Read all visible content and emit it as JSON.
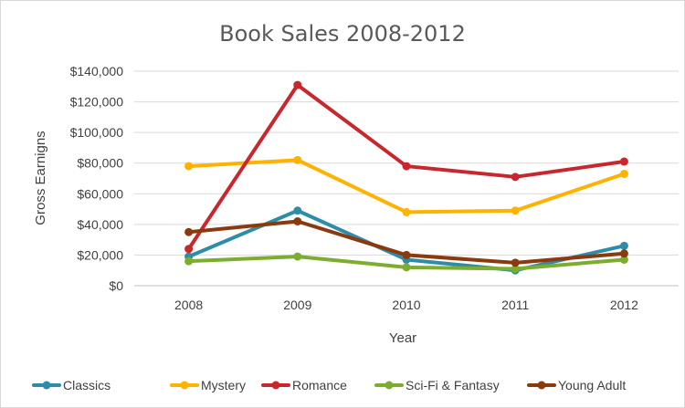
{
  "chart_data": {
    "type": "line",
    "title": "Book Sales 2008-2012",
    "xlabel": "Year",
    "ylabel": "Gross Earnigns",
    "categories": [
      "2008",
      "2009",
      "2010",
      "2011",
      "2012"
    ],
    "ylim": [
      0,
      140000
    ],
    "yticks": [
      0,
      20000,
      40000,
      60000,
      80000,
      100000,
      120000,
      140000
    ],
    "ytick_labels": [
      "$0",
      "$20,000",
      "$40,000",
      "$60,000",
      "$80,000",
      "$100,000",
      "$120,000",
      "$140,000"
    ],
    "grid": true,
    "legend_position": "bottom",
    "series": [
      {
        "name": "Classics",
        "color": "#2e8ca8",
        "values": [
          19000,
          49000,
          17000,
          10000,
          26000
        ]
      },
      {
        "name": "Mystery",
        "color": "#ffb300",
        "values": [
          78000,
          82000,
          48000,
          49000,
          73000
        ]
      },
      {
        "name": "Romance",
        "color": "#c8272d",
        "values": [
          24000,
          131000,
          78000,
          71000,
          81000
        ]
      },
      {
        "name": "Sci-Fi & Fantasy",
        "color": "#7cad2f",
        "values": [
          16000,
          19000,
          12000,
          11000,
          17000
        ]
      },
      {
        "name": "Young Adult",
        "color": "#8b3a0f",
        "values": [
          35000,
          42000,
          20000,
          15000,
          21000
        ]
      }
    ]
  }
}
